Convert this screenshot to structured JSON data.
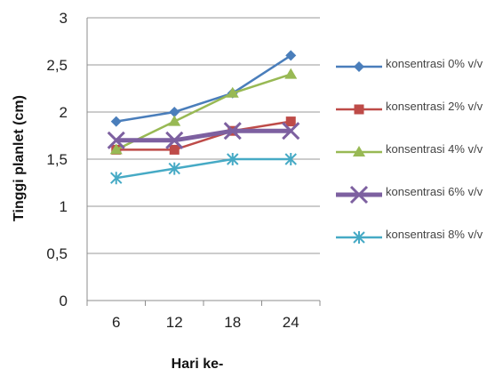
{
  "chart_data": {
    "type": "line",
    "title": "",
    "xlabel": "Hari ke-",
    "ylabel": "Tinggi planlet  (cm)",
    "categories": [
      "6",
      "12",
      "18",
      "24"
    ],
    "yticks": [
      "0",
      "0,5",
      "1",
      "1,5",
      "2",
      "2,5",
      "3"
    ],
    "ylim": [
      0,
      3
    ],
    "grid": "horizontal",
    "legend_position": "right",
    "series": [
      {
        "name": "konsentrasi 0% v/v",
        "values": [
          1.9,
          2.0,
          2.2,
          2.6
        ],
        "color": "#4a7ebb",
        "marker": "diamond"
      },
      {
        "name": "konsentrasi 2% v/v",
        "values": [
          1.6,
          1.6,
          1.8,
          1.9
        ],
        "color": "#be4b48",
        "marker": "square"
      },
      {
        "name": "konsentrasi 4% v/v",
        "values": [
          1.6,
          1.9,
          2.2,
          2.4
        ],
        "color": "#98b954",
        "marker": "triangle"
      },
      {
        "name": "konsentrasi 6% v/v",
        "values": [
          1.7,
          1.7,
          1.8,
          1.8
        ],
        "color": "#7d60a0",
        "marker": "x"
      },
      {
        "name": "konsentrasi 8% v/v",
        "values": [
          1.3,
          1.4,
          1.5,
          1.5
        ],
        "color": "#46aac5",
        "marker": "star"
      }
    ]
  }
}
